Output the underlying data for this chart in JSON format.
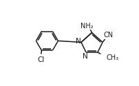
{
  "bg_color": "#ffffff",
  "line_color": "#1a1a1a",
  "line_width": 1.1,
  "font_size": 7.0,
  "fig_width": 2.02,
  "fig_height": 1.25,
  "dpi": 100,
  "xlim": [
    0,
    10.1
  ],
  "ylim": [
    0,
    6.25
  ]
}
